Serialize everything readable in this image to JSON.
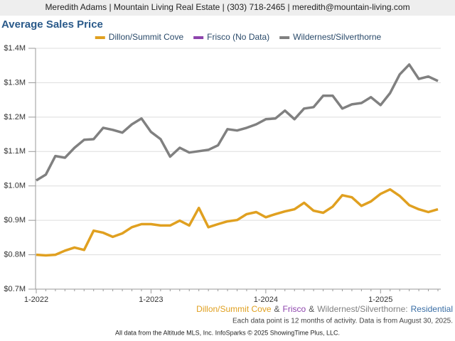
{
  "header": "Meredith Adams | Mountain Living Real Estate | (303) 718-2465 | meredith@mountain-living.com",
  "footer": "All data from the Altitude MLS, Inc. InfoSparks © 2025 ShowingTime Plus, LLC.",
  "chart_data": {
    "type": "line",
    "title": "Average Sales Price",
    "annotation_parts": [
      {
        "text": "Dillon/Summit Cove",
        "color": "#e0a020"
      },
      {
        "text": "&",
        "color": "#555555"
      },
      {
        "text": "Frisco",
        "color": "#8e44ad"
      },
      {
        "text": "&",
        "color": "#555555"
      },
      {
        "text": "Wildernest/Silverthorne:",
        "color": "#808080"
      },
      {
        "text": "Residential",
        "color": "#3a6ea5"
      }
    ],
    "note": "Each data point is 12 months of activity. Data is from August 30, 2025.",
    "categories": [
      "1-2022",
      null,
      null,
      null,
      null,
      null,
      null,
      null,
      null,
      null,
      null,
      null,
      "1-2023",
      null,
      null,
      null,
      null,
      null,
      null,
      null,
      null,
      null,
      null,
      null,
      "1-2024",
      null,
      null,
      null,
      null,
      null,
      null,
      null,
      null,
      null,
      null,
      null,
      "1-2025",
      null,
      null,
      null,
      null,
      null,
      null
    ],
    "series": [
      {
        "name": "Dillon/Summit Cove",
        "color": "#e0a020",
        "values": [
          800000,
          798000,
          800000,
          812000,
          821000,
          814000,
          870000,
          864000,
          852000,
          862000,
          880000,
          889000,
          889000,
          885000,
          885000,
          899000,
          885000,
          936000,
          880000,
          889000,
          897000,
          901000,
          918000,
          924000,
          909000,
          918000,
          926000,
          932000,
          951000,
          928000,
          922000,
          940000,
          973000,
          967000,
          942000,
          955000,
          977000,
          990000,
          971000,
          944000,
          932000,
          924000,
          932000
        ]
      },
      {
        "name": "Frisco (No Data)",
        "color": "#8e44ad",
        "values": [
          null,
          null,
          null,
          null,
          null,
          null,
          null,
          null,
          null,
          null,
          null,
          null,
          null,
          null,
          null,
          null,
          null,
          null,
          null,
          null,
          null,
          null,
          null,
          null,
          null,
          null,
          null,
          null,
          null,
          null,
          null,
          null,
          null,
          null,
          null,
          null,
          null,
          null,
          null,
          null,
          null,
          null,
          null
        ]
      },
      {
        "name": "Wildernest/Silverthorne",
        "color": "#808080",
        "values": [
          1016000,
          1033000,
          1087000,
          1082000,
          1111000,
          1134000,
          1136000,
          1169000,
          1163000,
          1155000,
          1179000,
          1196000,
          1157000,
          1136000,
          1085000,
          1111000,
          1097000,
          1101000,
          1105000,
          1118000,
          1165000,
          1161000,
          1169000,
          1179000,
          1194000,
          1196000,
          1219000,
          1194000,
          1225000,
          1229000,
          1262000,
          1262000,
          1225000,
          1237000,
          1241000,
          1258000,
          1235000,
          1270000,
          1324000,
          1353000,
          1311000,
          1318000,
          1305000
        ]
      }
    ],
    "ylim": [
      700000,
      1400000
    ],
    "yticks": [
      {
        "value": 700000,
        "label": "$0.7M"
      },
      {
        "value": 800000,
        "label": "$0.8M"
      },
      {
        "value": 900000,
        "label": "$0.9M"
      },
      {
        "value": 1000000,
        "label": "$1.0M"
      },
      {
        "value": 1100000,
        "label": "$1.1M"
      },
      {
        "value": 1200000,
        "label": "$1.2M"
      },
      {
        "value": 1300000,
        "label": "$1.3M"
      },
      {
        "value": 1400000,
        "label": "$1.4M"
      }
    ],
    "grid": true
  }
}
